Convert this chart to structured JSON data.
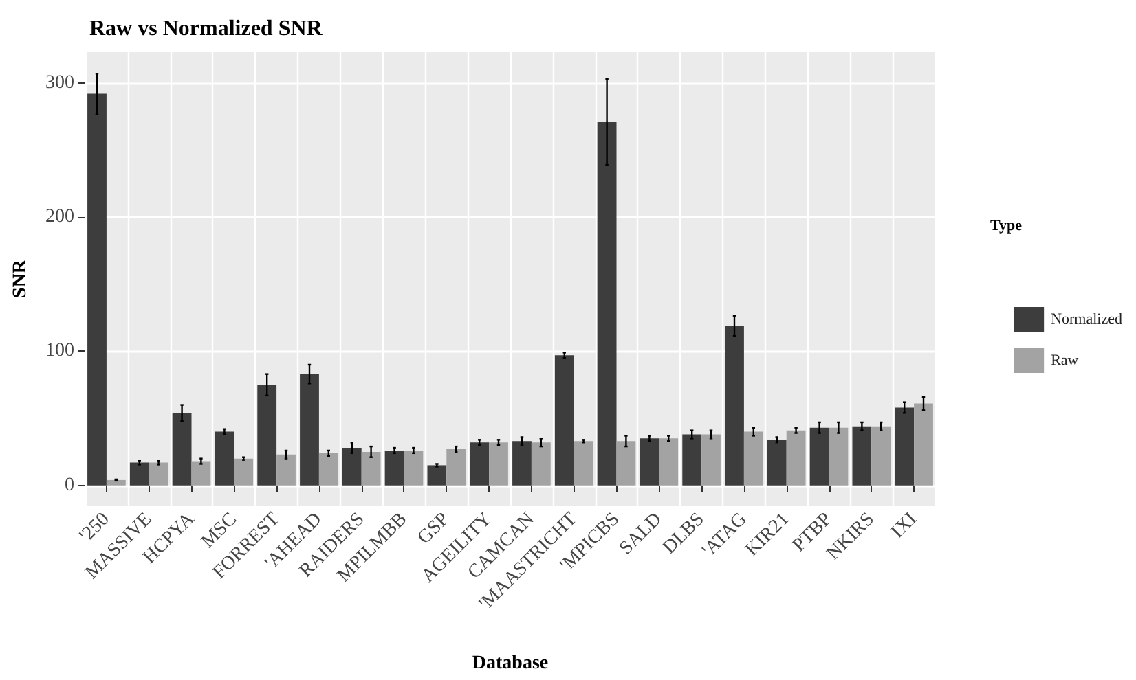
{
  "chart_data": {
    "type": "bar",
    "title": "Raw vs Normalized SNR",
    "xlabel": "Database",
    "ylabel": "SNR",
    "legend_title": "Type",
    "legend": "right",
    "grid": true,
    "categories": [
      "'250",
      "MASSIVE",
      "HCPYA",
      "MSC",
      "FORREST",
      "'AHEAD",
      "RAIDERS",
      "MPILMBB",
      "GSP",
      "AGEILITY",
      "CAMCAN",
      "'MAASTRICHT",
      "'MPICBS",
      "SALD",
      "DLBS",
      "'ATAG",
      "KIR21",
      "PTBP",
      "NKIRS",
      "IXI"
    ],
    "ylim": [
      -15,
      323
    ],
    "yticks": [
      0,
      100,
      200,
      300
    ],
    "series": [
      {
        "name": "Normalized",
        "color": "#3d3d3d",
        "values": [
          292,
          17,
          54,
          40,
          75,
          83,
          28,
          26,
          15,
          32,
          33,
          97,
          271,
          35,
          38,
          119,
          34,
          43,
          44,
          58
        ],
        "errors": [
          15,
          1.5,
          6,
          2,
          8,
          7,
          4,
          2,
          1,
          2,
          3,
          2,
          32,
          2,
          3,
          7.5,
          2,
          4,
          3,
          4
        ]
      },
      {
        "name": "Raw",
        "color": "#a3a3a3",
        "values": [
          4,
          17,
          18,
          20,
          23,
          24,
          25,
          26,
          27,
          32,
          32,
          33,
          33,
          35,
          38,
          40,
          41,
          43,
          44,
          61
        ],
        "errors": [
          0.5,
          1.5,
          2,
          1,
          3,
          2,
          4,
          2,
          2,
          2,
          3,
          1,
          4,
          2,
          3,
          3,
          2,
          4,
          3,
          5
        ]
      }
    ]
  }
}
